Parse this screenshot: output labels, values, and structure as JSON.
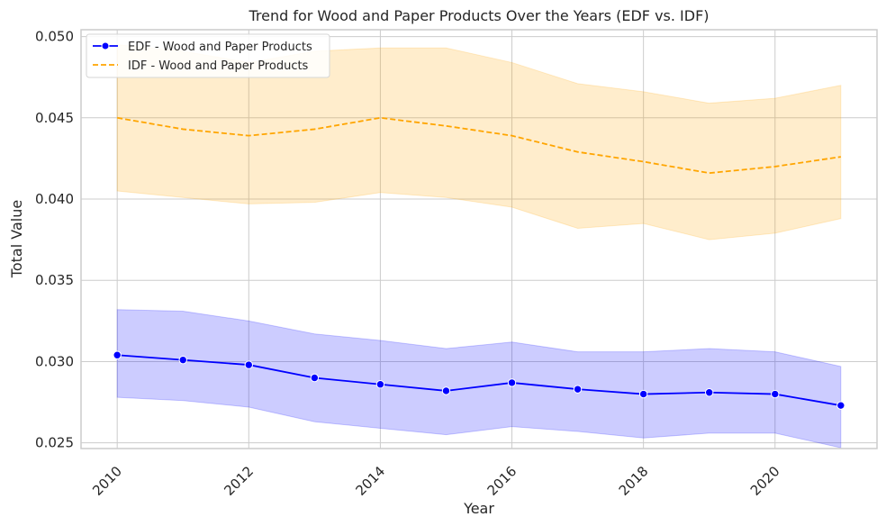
{
  "chart_data": {
    "type": "line",
    "title": "Trend for Wood and Paper Products Over the Years (EDF vs. IDF)",
    "xlabel": "Year",
    "ylabel": "Total Value",
    "x": [
      2010,
      2011,
      2012,
      2013,
      2014,
      2015,
      2016,
      2017,
      2018,
      2019,
      2020,
      2021
    ],
    "xlim": [
      2009.45,
      2021.55
    ],
    "ylim": [
      0.02465,
      0.05042
    ],
    "x_ticks": [
      2010,
      2012,
      2014,
      2016,
      2018,
      2020
    ],
    "x_tick_labels": [
      "2010",
      "2012",
      "2014",
      "2016",
      "2018",
      "2020"
    ],
    "y_ticks": [
      0.025,
      0.03,
      0.035,
      0.04,
      0.045,
      0.05
    ],
    "y_tick_labels": [
      "0.025",
      "0.030",
      "0.035",
      "0.040",
      "0.045",
      "0.050"
    ],
    "x_tick_rotation": -45,
    "grid": true,
    "legend_position": "top-left",
    "series": [
      {
        "name": "EDF - Wood and Paper Products",
        "color": "#0000ff",
        "line_style": "solid",
        "marker": "circle",
        "values": [
          0.0304,
          0.0301,
          0.0298,
          0.029,
          0.0286,
          0.0282,
          0.0287,
          0.0283,
          0.028,
          0.0281,
          0.028,
          0.0273
        ],
        "ci_lower": [
          0.0278,
          0.0276,
          0.0272,
          0.0263,
          0.0259,
          0.0255,
          0.026,
          0.0257,
          0.0253,
          0.0256,
          0.0256,
          0.0247
        ],
        "ci_upper": [
          0.0332,
          0.0331,
          0.0325,
          0.0317,
          0.0313,
          0.0308,
          0.0312,
          0.0306,
          0.0306,
          0.0308,
          0.0306,
          0.0297
        ],
        "band_color": "#0000ff",
        "band_opacity": 0.2
      },
      {
        "name": "IDF - Wood and Paper Products",
        "color": "#ffa500",
        "line_style": "dashed",
        "marker": "none",
        "values": [
          0.045,
          0.0443,
          0.0439,
          0.0443,
          0.045,
          0.0445,
          0.0439,
          0.0429,
          0.0423,
          0.0416,
          0.042,
          0.0426
        ],
        "ci_lower": [
          0.0405,
          0.0401,
          0.0397,
          0.0398,
          0.0404,
          0.0401,
          0.0395,
          0.0382,
          0.0385,
          0.0375,
          0.0379,
          0.0388
        ],
        "ci_upper": [
          0.0495,
          0.0491,
          0.0484,
          0.0491,
          0.0493,
          0.0493,
          0.0484,
          0.0471,
          0.0466,
          0.0459,
          0.0462,
          0.047
        ],
        "band_color": "#ffa500",
        "band_opacity": 0.2
      }
    ]
  }
}
